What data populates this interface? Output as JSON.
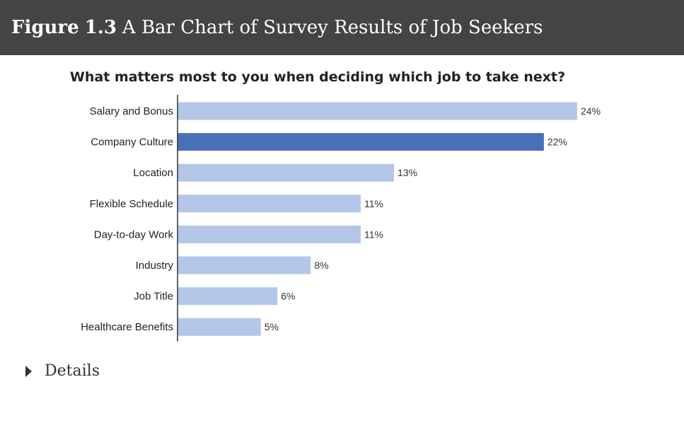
{
  "figure": {
    "label": "Figure",
    "number": "1.3",
    "caption": "A Bar Chart of Survey Results of Job Seekers"
  },
  "details": {
    "label": "Details",
    "icon": "triangle-right-icon"
  },
  "chart_data": {
    "type": "bar",
    "orientation": "horizontal",
    "title": "What matters most to you when deciding which job to take next?",
    "categories": [
      "Salary and Bonus",
      "Company Culture",
      "Location",
      "Flexible Schedule",
      "Day-to-day Work",
      "Industry",
      "Job Title",
      "Healthcare Benefits"
    ],
    "values": [
      24,
      22,
      13,
      11,
      11,
      8,
      6,
      5
    ],
    "value_labels": [
      "24%",
      "22%",
      "13%",
      "11%",
      "11%",
      "8%",
      "6%",
      "5%"
    ],
    "highlight_index": 1,
    "xlim": [
      0,
      24
    ],
    "grid": false,
    "colors": {
      "bar": "#b4c6e7",
      "highlight": "#4a70b9",
      "axis": "#333333"
    }
  }
}
